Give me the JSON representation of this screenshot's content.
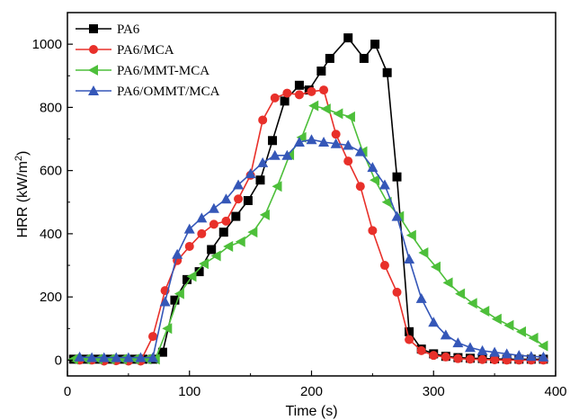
{
  "chart_data": {
    "type": "line",
    "xlabel": "Time (s)",
    "ylabel_main": "HRR (kW/m",
    "ylabel_sup": "2",
    "ylabel_close": ")",
    "xlim": [
      0,
      400
    ],
    "ylim": [
      -50,
      1100
    ],
    "xticks": [
      0,
      100,
      200,
      300,
      400
    ],
    "yticks": [
      0,
      200,
      400,
      600,
      800,
      1000
    ],
    "grid": false,
    "legend_position": "top-left",
    "series": [
      {
        "name": "PA6",
        "color": "#000000",
        "marker": "square",
        "points": [
          [
            5,
            3
          ],
          [
            15,
            3
          ],
          [
            25,
            3
          ],
          [
            35,
            3
          ],
          [
            45,
            3
          ],
          [
            55,
            3
          ],
          [
            62,
            3
          ],
          [
            70,
            3
          ],
          [
            78,
            25
          ],
          [
            88,
            190
          ],
          [
            98,
            255
          ],
          [
            108,
            280
          ],
          [
            118,
            350
          ],
          [
            128,
            405
          ],
          [
            138,
            455
          ],
          [
            148,
            505
          ],
          [
            158,
            570
          ],
          [
            168,
            695
          ],
          [
            178,
            820
          ],
          [
            190,
            870
          ],
          [
            198,
            855
          ],
          [
            208,
            915
          ],
          [
            215,
            955
          ],
          [
            230,
            1020
          ],
          [
            243,
            955
          ],
          [
            252,
            1000
          ],
          [
            262,
            910
          ],
          [
            270,
            580
          ],
          [
            280,
            90
          ],
          [
            290,
            35
          ],
          [
            300,
            20
          ],
          [
            310,
            12
          ],
          [
            320,
            8
          ],
          [
            330,
            6
          ],
          [
            340,
            5
          ],
          [
            350,
            4
          ],
          [
            360,
            3
          ],
          [
            370,
            3
          ],
          [
            380,
            3
          ],
          [
            390,
            3
          ]
        ]
      },
      {
        "name": "PA6/MCA",
        "color": "#e8302a",
        "marker": "circle",
        "points": [
          [
            10,
            0
          ],
          [
            20,
            0
          ],
          [
            30,
            -3
          ],
          [
            40,
            -2
          ],
          [
            50,
            -3
          ],
          [
            60,
            -3
          ],
          [
            70,
            75
          ],
          [
            80,
            220
          ],
          [
            90,
            315
          ],
          [
            100,
            360
          ],
          [
            110,
            400
          ],
          [
            120,
            430
          ],
          [
            130,
            440
          ],
          [
            140,
            510
          ],
          [
            150,
            585
          ],
          [
            160,
            760
          ],
          [
            170,
            830
          ],
          [
            180,
            845
          ],
          [
            190,
            840
          ],
          [
            200,
            850
          ],
          [
            210,
            855
          ],
          [
            220,
            715
          ],
          [
            230,
            630
          ],
          [
            240,
            550
          ],
          [
            250,
            410
          ],
          [
            260,
            300
          ],
          [
            270,
            215
          ],
          [
            280,
            65
          ],
          [
            290,
            30
          ],
          [
            300,
            15
          ],
          [
            310,
            10
          ],
          [
            320,
            5
          ],
          [
            330,
            3
          ],
          [
            340,
            2
          ],
          [
            350,
            1
          ],
          [
            360,
            0
          ],
          [
            370,
            0
          ],
          [
            380,
            0
          ],
          [
            390,
            0
          ]
        ]
      },
      {
        "name": "PA6/MMT-MCA",
        "color": "#4dbf3a",
        "marker": "triangle-left",
        "points": [
          [
            5,
            3
          ],
          [
            15,
            3
          ],
          [
            25,
            3
          ],
          [
            35,
            3
          ],
          [
            45,
            3
          ],
          [
            55,
            3
          ],
          [
            65,
            3
          ],
          [
            72,
            3
          ],
          [
            82,
            100
          ],
          [
            92,
            210
          ],
          [
            102,
            265
          ],
          [
            112,
            305
          ],
          [
            122,
            330
          ],
          [
            132,
            360
          ],
          [
            142,
            375
          ],
          [
            152,
            405
          ],
          [
            162,
            460
          ],
          [
            172,
            550
          ],
          [
            182,
            650
          ],
          [
            192,
            705
          ],
          [
            202,
            805
          ],
          [
            212,
            795
          ],
          [
            222,
            780
          ],
          [
            232,
            770
          ],
          [
            242,
            660
          ],
          [
            252,
            570
          ],
          [
            262,
            500
          ],
          [
            272,
            455
          ],
          [
            282,
            395
          ],
          [
            292,
            340
          ],
          [
            302,
            295
          ],
          [
            312,
            245
          ],
          [
            322,
            210
          ],
          [
            332,
            180
          ],
          [
            342,
            155
          ],
          [
            352,
            130
          ],
          [
            362,
            110
          ],
          [
            372,
            90
          ],
          [
            382,
            70
          ],
          [
            390,
            45
          ]
        ]
      },
      {
        "name": "PA6/OMMT/MCA",
        "color": "#3557b8",
        "marker": "triangle-up",
        "points": [
          [
            10,
            10
          ],
          [
            20,
            8
          ],
          [
            30,
            8
          ],
          [
            40,
            8
          ],
          [
            50,
            8
          ],
          [
            60,
            8
          ],
          [
            70,
            8
          ],
          [
            80,
            185
          ],
          [
            90,
            335
          ],
          [
            100,
            415
          ],
          [
            110,
            450
          ],
          [
            120,
            480
          ],
          [
            130,
            510
          ],
          [
            140,
            555
          ],
          [
            150,
            590
          ],
          [
            160,
            625
          ],
          [
            170,
            648
          ],
          [
            180,
            648
          ],
          [
            190,
            690
          ],
          [
            200,
            698
          ],
          [
            210,
            690
          ],
          [
            220,
            685
          ],
          [
            230,
            680
          ],
          [
            240,
            660
          ],
          [
            250,
            610
          ],
          [
            260,
            555
          ],
          [
            270,
            455
          ],
          [
            280,
            320
          ],
          [
            290,
            195
          ],
          [
            300,
            120
          ],
          [
            310,
            80
          ],
          [
            320,
            55
          ],
          [
            330,
            40
          ],
          [
            340,
            30
          ],
          [
            350,
            25
          ],
          [
            360,
            20
          ],
          [
            370,
            15
          ],
          [
            380,
            12
          ],
          [
            390,
            10
          ]
        ]
      }
    ]
  }
}
